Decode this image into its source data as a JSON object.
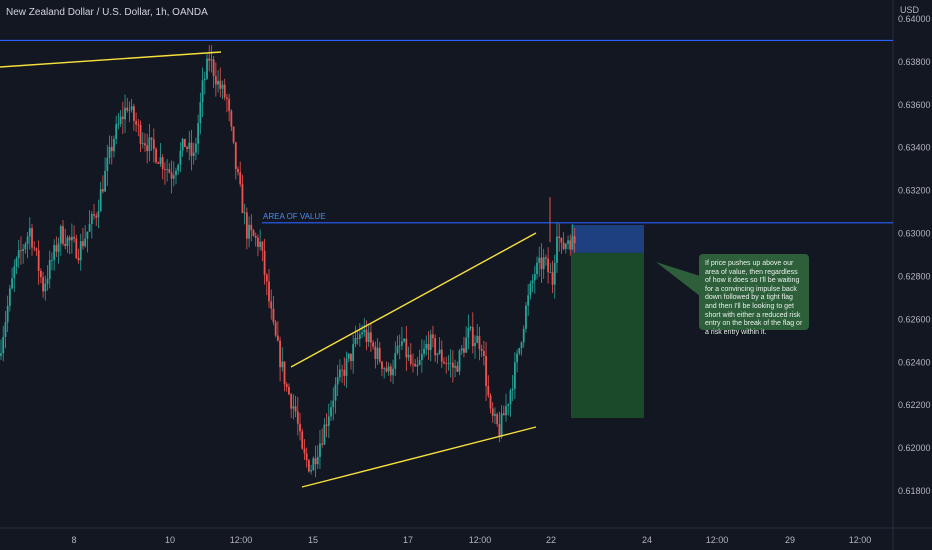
{
  "header": {
    "symbol_title": "New Zealand Dollar / U.S. Dollar, 1h, OANDA",
    "currency": "USD"
  },
  "chart_data": {
    "type": "candlestick",
    "title": "New Zealand Dollar / U.S. Dollar, 1h, OANDA",
    "xlabel": "",
    "ylabel": "USD",
    "ylim": [
      0.6173,
      0.6407
    ],
    "y_ticks": [
      "0.64000",
      "0.63800",
      "0.63600",
      "0.63400",
      "0.63200",
      "0.63000",
      "0.62800",
      "0.62600",
      "0.62400",
      "0.62200",
      "0.62000",
      "0.61800"
    ],
    "x_ticks": [
      "8",
      "10",
      "12:00",
      "15",
      "17",
      "12:00",
      "22",
      "24",
      "12:00",
      "29",
      "12:00"
    ],
    "grid": false,
    "colors": {
      "up": "#26a69a",
      "down": "#ef5350",
      "trendline": "#f7e03c",
      "level": "#2962ff",
      "zone_risk": "#1e3f80",
      "zone_reward": "#1b4a2a"
    },
    "waypoints": [
      [
        0,
        0.6243
      ],
      [
        7,
        0.6283
      ],
      [
        14,
        0.6302
      ],
      [
        20,
        0.6275
      ],
      [
        28,
        0.63
      ],
      [
        36,
        0.6292
      ],
      [
        44,
        0.631
      ],
      [
        52,
        0.6345
      ],
      [
        58,
        0.636
      ],
      [
        64,
        0.6346
      ],
      [
        72,
        0.6336
      ],
      [
        78,
        0.6328
      ],
      [
        84,
        0.6342
      ],
      [
        88,
        0.6335
      ],
      [
        92,
        0.6368
      ],
      [
        95,
        0.6382
      ],
      [
        99,
        0.637
      ],
      [
        103,
        0.6362
      ],
      [
        107,
        0.6331
      ],
      [
        112,
        0.6301
      ],
      [
        118,
        0.6295
      ],
      [
        124,
        0.6255
      ],
      [
        130,
        0.6228
      ],
      [
        134,
        0.6217
      ],
      [
        137,
        0.6197
      ],
      [
        141,
        0.6191
      ],
      [
        146,
        0.6206
      ],
      [
        152,
        0.6228
      ],
      [
        158,
        0.6241
      ],
      [
        164,
        0.6255
      ],
      [
        170,
        0.6245
      ],
      [
        176,
        0.6235
      ],
      [
        182,
        0.6249
      ],
      [
        188,
        0.6234
      ],
      [
        194,
        0.625
      ],
      [
        200,
        0.6242
      ],
      [
        206,
        0.6237
      ],
      [
        212,
        0.6253
      ],
      [
        218,
        0.6249
      ],
      [
        222,
        0.6215
      ],
      [
        226,
        0.6208
      ],
      [
        230,
        0.6223
      ],
      [
        234,
        0.6241
      ],
      [
        238,
        0.6265
      ],
      [
        242,
        0.6282
      ],
      [
        246,
        0.6287
      ],
      [
        250,
        0.6278
      ],
      [
        252,
        0.6303
      ],
      [
        254,
        0.6292
      ],
      [
        257,
        0.6298
      ],
      [
        259,
        0.6296
      ]
    ],
    "candle_count": 260,
    "annotations": {
      "horizontal_levels": [
        {
          "value": 0.639
        },
        {
          "value": 0.6305,
          "label": "AREA OF VALUE"
        }
      ],
      "trendlines": [
        {
          "from": [
            0,
            0.6377
          ],
          "to": [
            100,
            0.6385
          ]
        },
        {
          "from": [
            132,
            0.6237
          ],
          "to": [
            244,
            0.63
          ]
        },
        {
          "from": [
            136,
            0.6184
          ],
          "to": [
            244,
            0.621
          ]
        }
      ],
      "position": {
        "entry": 0.6291,
        "stop": 0.6304,
        "target": 0.6214,
        "label": ""
      },
      "note": "If price pushes up above our area of value, then regardless of how it does so I'll be waiting for a convincing impulse back down followed by a tight flag and then I'll be looking to get short with either a reduced risk entry on the break of the flag or a risk entry within it."
    }
  }
}
